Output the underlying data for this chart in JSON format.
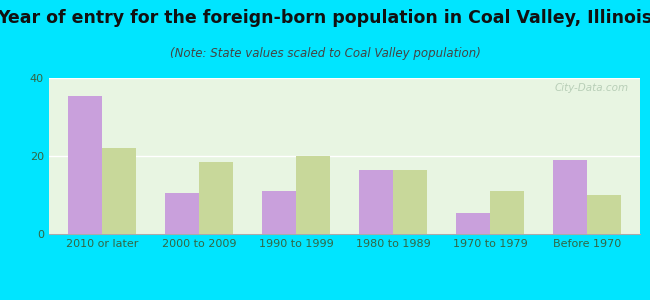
{
  "title": "Year of entry for the foreign-born population in Coal Valley, Illinois",
  "subtitle": "(Note: State values scaled to Coal Valley population)",
  "categories": [
    "2010 or later",
    "2000 to 2009",
    "1990 to 1999",
    "1980 to 1989",
    "1970 to 1979",
    "Before 1970"
  ],
  "coal_valley": [
    35.5,
    10.5,
    11.0,
    16.5,
    5.5,
    19.0
  ],
  "illinois": [
    22.0,
    18.5,
    20.0,
    16.5,
    11.0,
    10.0
  ],
  "coal_valley_color": "#c9a0dc",
  "illinois_color": "#c8d89a",
  "background_outer": "#00e5ff",
  "background_inner_top": "#e8f5e2",
  "background_inner_bottom": "#f0faf0",
  "ylim": [
    0,
    40
  ],
  "yticks": [
    0,
    20,
    40
  ],
  "bar_width": 0.35,
  "title_fontsize": 12.5,
  "subtitle_fontsize": 8.5,
  "tick_fontsize": 8,
  "legend_fontsize": 9,
  "title_color": "#111111",
  "subtitle_color": "#444444",
  "tick_color": "#336644",
  "watermark_color": "#b0c8b0",
  "grid_color": "#ffffff"
}
